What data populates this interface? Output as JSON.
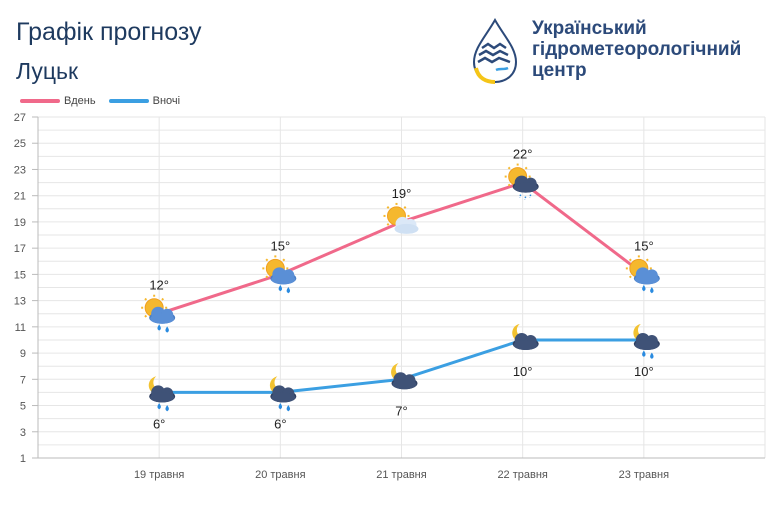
{
  "header": {
    "title": "Графік прогнозу",
    "city": "Луцьк",
    "org_line1": "Український",
    "org_line2": "гідрометеорологічний",
    "org_line3": "центр"
  },
  "colors": {
    "day": "#f0698a",
    "night": "#3b9fe2",
    "title": "#1e3a5f"
  },
  "chart_data": {
    "type": "line",
    "x": [
      "19 травня",
      "20 травня",
      "21 травня",
      "22 травня",
      "23 травня"
    ],
    "series": [
      {
        "name": "Вдень",
        "values": [
          12,
          15,
          19,
          22,
          15
        ],
        "labels": [
          "12°",
          "15°",
          "19°",
          "22°",
          "15°"
        ],
        "icons": [
          "sun-cloud-rain-icon",
          "sun-cloud-rain-icon",
          "sun-cloud-icon",
          "sun-cloud-storm-icon",
          "sun-cloud-rain-icon"
        ]
      },
      {
        "name": "Вночі",
        "values": [
          6,
          6,
          7,
          10,
          10
        ],
        "labels": [
          "6°",
          "6°",
          "7°",
          "10°",
          "10°"
        ],
        "icons": [
          "moon-cloud-rain-icon",
          "moon-cloud-rain-icon",
          "moon-cloud-icon",
          "moon-cloud-icon",
          "moon-cloud-rain-icon"
        ]
      }
    ],
    "y_ticks": [
      "1",
      "3",
      "5",
      "7",
      "9",
      "11",
      "13",
      "15",
      "17",
      "19",
      "21",
      "23",
      "25",
      "27"
    ],
    "ylim": [
      1,
      27
    ],
    "grid": true,
    "legend": "top-left"
  }
}
